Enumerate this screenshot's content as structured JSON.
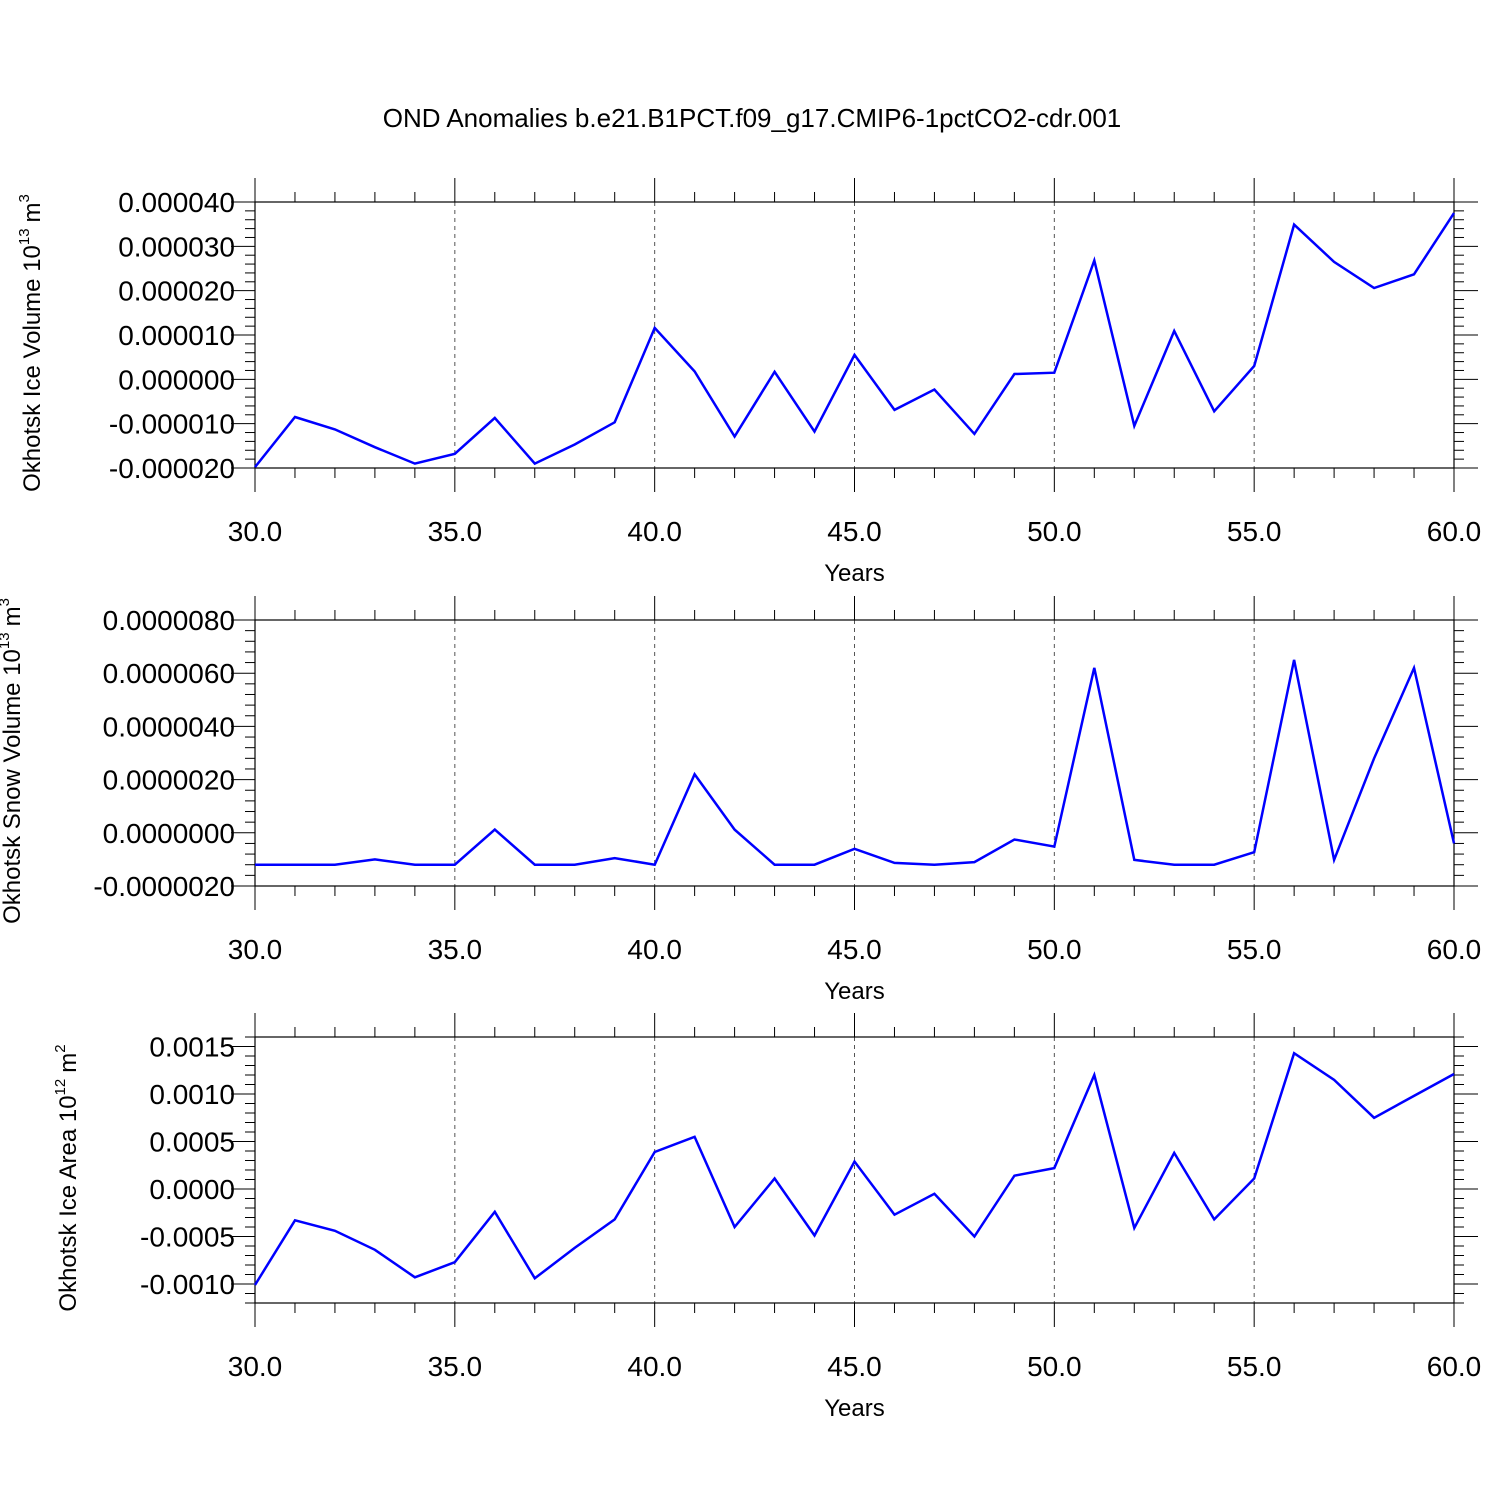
{
  "title": "OND Anomalies b.e21.B1PCT.f09_g17.CMIP6-1pctCO2-cdr.001",
  "colors": {
    "line": "#0000ff",
    "axis": "#000000",
    "grid": "#555555"
  },
  "chart_data": [
    {
      "type": "line",
      "xlabel": "Years",
      "ylabel": "Okhotsk Ice Volume 10",
      "ylabel_exp": "13",
      "ylabel_unit": "m",
      "ylabel_unit_exp": "3",
      "xlim": [
        30,
        60
      ],
      "ylim": [
        -2e-05,
        4e-05
      ],
      "x_ticks": [
        "30.0",
        "35.0",
        "40.0",
        "45.0",
        "50.0",
        "55.0",
        "60.0"
      ],
      "y_ticks": [
        "-0.000020",
        "-0.000010",
        "0.000000",
        "0.000010",
        "0.000020",
        "0.000030",
        "0.000040"
      ],
      "grid": "vertical dashed at major x ticks",
      "series": [
        {
          "x": [
            30,
            31,
            32,
            33,
            34,
            35,
            36,
            37,
            38,
            39,
            40,
            41,
            42,
            43,
            44,
            45,
            46,
            47,
            48,
            49,
            50,
            51,
            52,
            53,
            54,
            55,
            56,
            57,
            58,
            59,
            60
          ],
          "values": [
            -1.98e-05,
            -8.5e-06,
            -1.13e-05,
            -1.53e-05,
            -1.9e-05,
            -1.68e-05,
            -8.7e-06,
            -1.9e-05,
            -1.47e-05,
            -9.7e-06,
            1.16e-05,
            1.8e-06,
            -1.29e-05,
            1.7e-06,
            -1.18e-05,
            5.5e-06,
            -6.9e-06,
            -2.3e-06,
            -1.23e-05,
            1.2e-06,
            1.5e-06,
            2.68e-05,
            -1.05e-05,
            1.09e-05,
            -7.2e-06,
            3e-06,
            3.49e-05,
            2.65e-05,
            2.06e-05,
            2.37e-05,
            3.75e-05
          ]
        }
      ]
    },
    {
      "type": "line",
      "xlabel": "Years",
      "ylabel": "Okhotsk Snow Volume 10",
      "ylabel_exp": "13",
      "ylabel_unit": "m",
      "ylabel_unit_exp": "3",
      "xlim": [
        30,
        60
      ],
      "ylim": [
        -2e-06,
        8e-06
      ],
      "x_ticks": [
        "30.0",
        "35.0",
        "40.0",
        "45.0",
        "50.0",
        "55.0",
        "60.0"
      ],
      "y_ticks": [
        "-0.0000020",
        "0.0000000",
        "0.0000020",
        "0.0000040",
        "0.0000060",
        "0.0000080"
      ],
      "grid": "vertical dashed at major x ticks",
      "series": [
        {
          "x": [
            30,
            31,
            32,
            33,
            34,
            35,
            36,
            37,
            38,
            39,
            40,
            41,
            42,
            43,
            44,
            45,
            46,
            47,
            48,
            49,
            50,
            51,
            52,
            53,
            54,
            55,
            56,
            57,
            58,
            59,
            60
          ],
          "values": [
            -1.2e-06,
            -1.2e-06,
            -1.2e-06,
            -1e-06,
            -1.2e-06,
            -1.2e-06,
            1.2e-07,
            -1.2e-06,
            -1.2e-06,
            -9.5e-07,
            -1.2e-06,
            2.2e-06,
            1.2e-07,
            -1.2e-06,
            -1.2e-06,
            -6e-07,
            -1.13e-06,
            -1.2e-06,
            -1.1e-06,
            -2.5e-07,
            -5.2e-07,
            6.2e-06,
            -1.02e-06,
            -1.2e-06,
            -1.2e-06,
            -7.3e-07,
            6.5e-06,
            -1.02e-06,
            2.8e-06,
            6.2e-06,
            -4e-07
          ]
        }
      ]
    },
    {
      "type": "line",
      "xlabel": "Years",
      "ylabel": "Okhotsk Ice Area 10",
      "ylabel_exp": "12",
      "ylabel_unit": "m",
      "ylabel_unit_exp": "2",
      "xlim": [
        30,
        60
      ],
      "ylim": [
        -0.0012,
        0.0016
      ],
      "x_ticks": [
        "30.0",
        "35.0",
        "40.0",
        "45.0",
        "50.0",
        "55.0",
        "60.0"
      ],
      "y_ticks": [
        "-0.0010",
        "-0.0005",
        "0.0000",
        "0.0005",
        "0.0010",
        "0.0015"
      ],
      "grid": "vertical dashed at major x ticks",
      "series": [
        {
          "x": [
            30,
            31,
            32,
            33,
            34,
            35,
            36,
            37,
            38,
            39,
            40,
            41,
            42,
            43,
            44,
            45,
            46,
            47,
            48,
            49,
            50,
            51,
            52,
            53,
            54,
            55,
            56,
            57,
            58,
            59,
            60
          ],
          "values": [
            -0.00101,
            -0.00033,
            -0.00044,
            -0.00064,
            -0.00093,
            -0.00077,
            -0.00024,
            -0.00094,
            -0.00062,
            -0.00032,
            0.00039,
            0.00055,
            -0.0004,
            0.00011,
            -0.00049,
            0.00029,
            -0.00027,
            -5e-05,
            -0.0005,
            0.00014,
            0.00022,
            0.0012,
            -0.00041,
            0.00038,
            -0.00032,
            0.00011,
            0.00143,
            0.00115,
            0.00075,
            0.00098,
            0.00121
          ]
        }
      ]
    }
  ]
}
